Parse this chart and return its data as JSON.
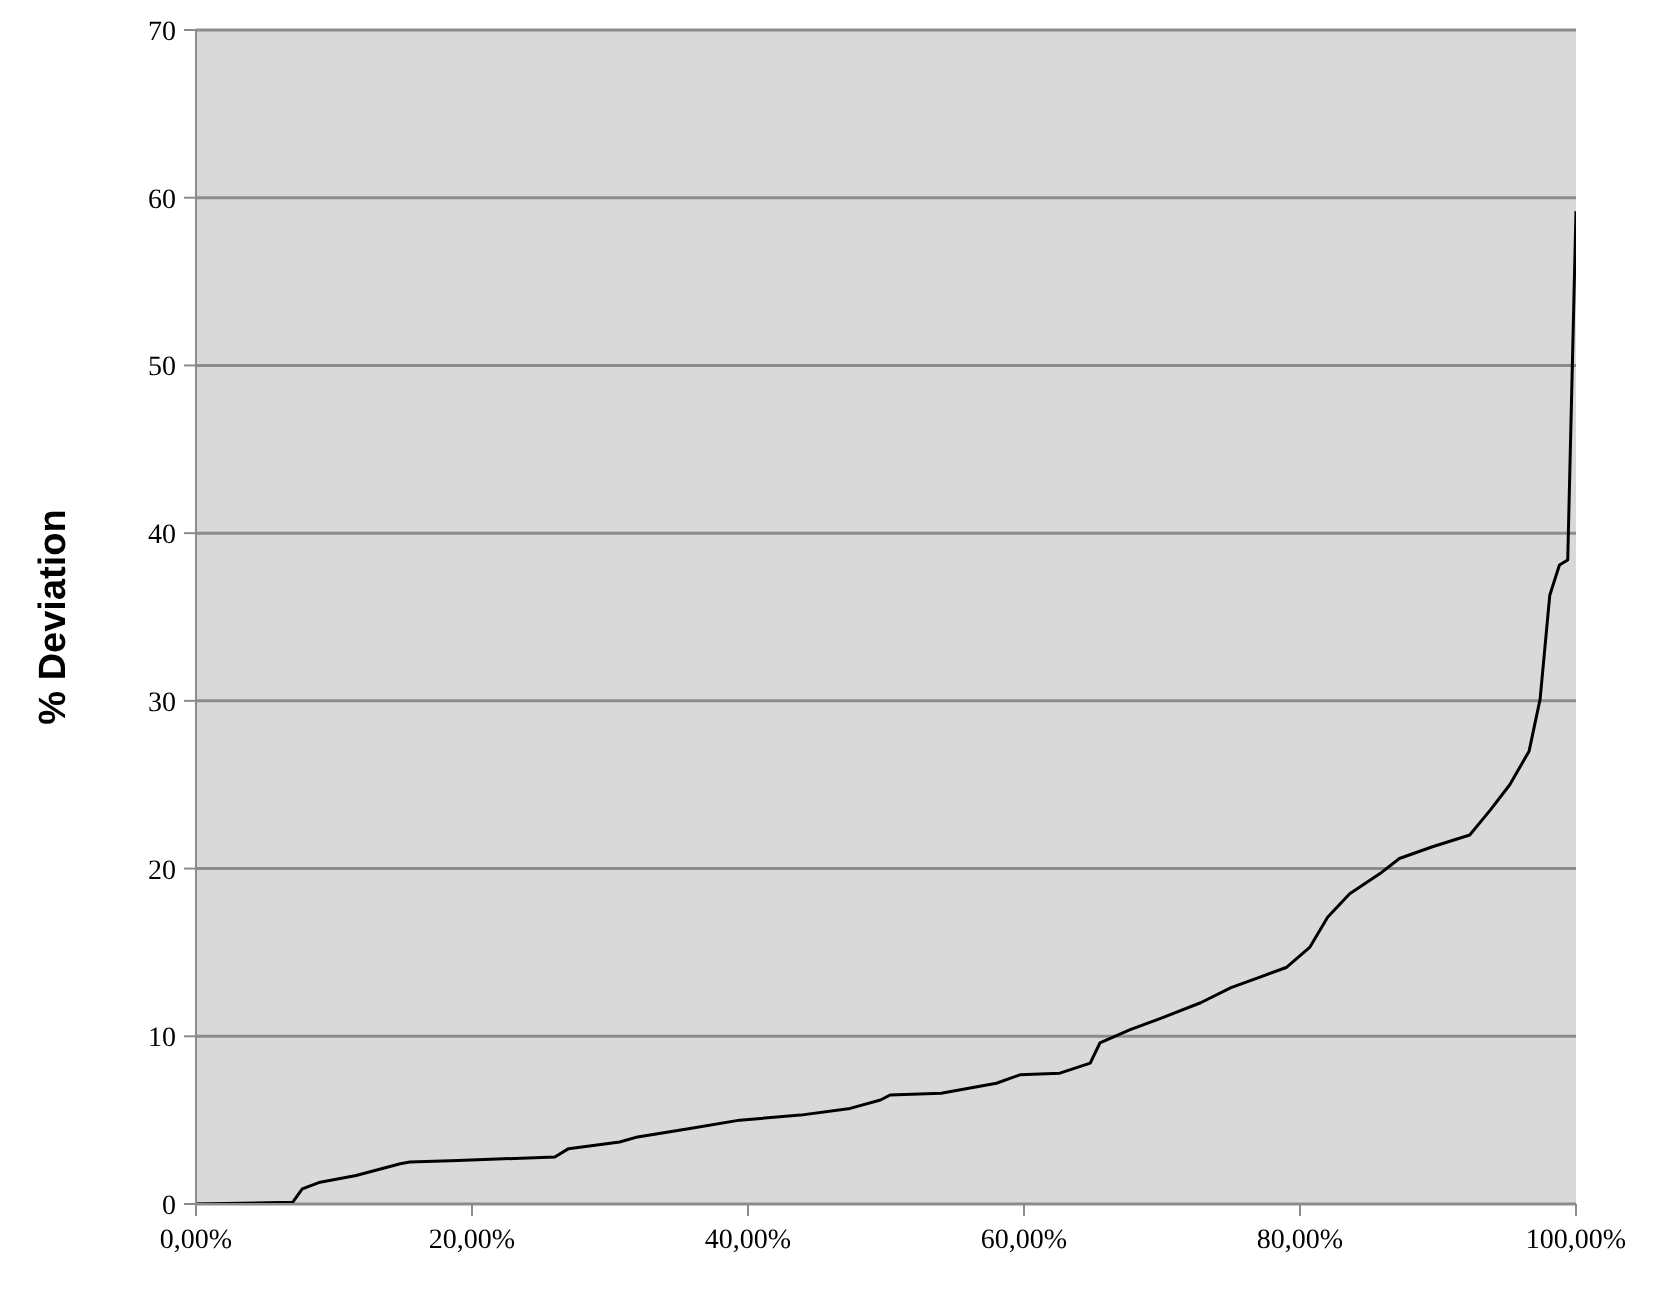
{
  "chart_data": {
    "type": "line",
    "ylabel": "% Deviation",
    "x": [
      0,
      7,
      7.7,
      9,
      11.6,
      14.8,
      15.5,
      19,
      26,
      27,
      30.7,
      32,
      35.8,
      39.4,
      43.8,
      47.4,
      49.6,
      50.3,
      54,
      58,
      59.7,
      62.6,
      64.8,
      65.5,
      67.7,
      70,
      72.8,
      75,
      77,
      79,
      80.7,
      82,
      83.6,
      85.8,
      87.2,
      89.6,
      92.3,
      93.8,
      95.2,
      96.6,
      97.4,
      98.1,
      98.8,
      99.4,
      100
    ],
    "series": [
      {
        "color": "#000000",
        "values": [
          0,
          0.1,
          0.9,
          1.3,
          1.7,
          2.4,
          2.5,
          2.6,
          2.8,
          3.3,
          3.7,
          4.0,
          4.5,
          5.0,
          5.3,
          5.7,
          6.2,
          6.5,
          6.6,
          7.2,
          7.7,
          7.8,
          8.4,
          9.6,
          10.4,
          11.1,
          12.0,
          12.9,
          13.5,
          14.1,
          15.3,
          17.1,
          18.5,
          19.7,
          20.6,
          21.3,
          22.0,
          23.5,
          25.0,
          27.0,
          30.1,
          36.3,
          38.1,
          38.4,
          59.2
        ]
      }
    ],
    "xlim": [
      0,
      100
    ],
    "xticks": [
      {
        "value": 0,
        "label": "0,00%"
      },
      {
        "value": 20,
        "label": "20,00%"
      },
      {
        "value": 40,
        "label": "40,00%"
      },
      {
        "value": 60,
        "label": "60,00%"
      },
      {
        "value": 80,
        "label": "80,00%"
      },
      {
        "value": 100,
        "label": "100,00%"
      }
    ],
    "ylim": [
      0,
      70
    ],
    "yticks": [
      0,
      10,
      20,
      30,
      40,
      50,
      60,
      70
    ],
    "grid": "y",
    "legend": false,
    "marker": "none",
    "line_style": "solid"
  }
}
